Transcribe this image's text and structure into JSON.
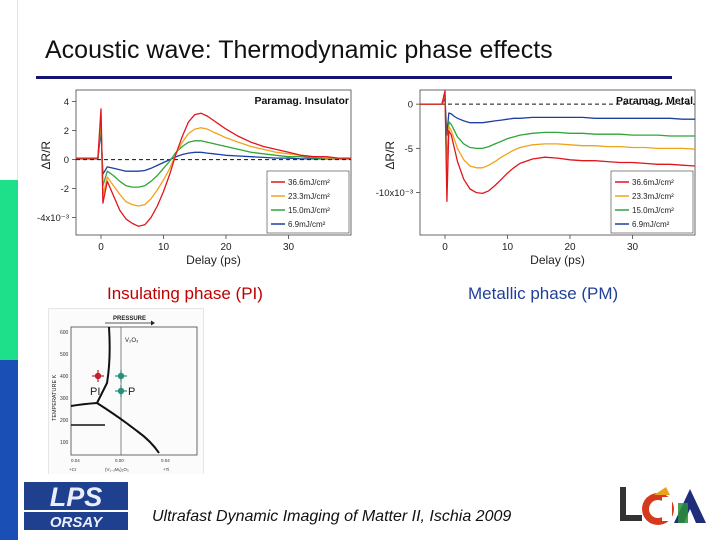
{
  "slide": {
    "title": "Acoustic wave: Thermodynamic phase effects",
    "footer": "Ultrafast Dynamic Imaging of Matter II, Ischia 2009",
    "left_label": "Insulating phase (PI)",
    "right_label": "Metallic phase (PM)",
    "logo_lps_top": "LPS",
    "logo_lps_bottom": "ORSAY",
    "colors": {
      "title_rule": "#141470",
      "bar_green": "#1fe08a",
      "bar_blue": "#1a4fb5"
    }
  },
  "chart_data": [
    {
      "type": "line",
      "title": "Paramag. Insulator",
      "xlabel": "Delay (ps)",
      "ylabel": "ΔR/R",
      "x_ticks": [
        "0",
        "10",
        "20",
        "30"
      ],
      "y_ticks": [
        "4",
        "2",
        "0",
        "-2",
        "-4x10⁻³"
      ],
      "xlim": [
        -4,
        40
      ],
      "ylim": [
        -5.2,
        4.8
      ],
      "scale_note": "",
      "legend_position": "bottom-right",
      "series": [
        {
          "name": "36.6mJ/cm²",
          "color": "#e0161e",
          "x": [
            -4,
            -0.5,
            0,
            0.3,
            1,
            2,
            3,
            4,
            5,
            6,
            7,
            8,
            9,
            10,
            11,
            12,
            13,
            14,
            15,
            16,
            17,
            18,
            19,
            20,
            22,
            24,
            26,
            28,
            30,
            32,
            34,
            36,
            38,
            40
          ],
          "y": [
            0.1,
            0.1,
            3.5,
            -3,
            -1.5,
            -2.5,
            -3.5,
            -4.1,
            -4.4,
            -4.6,
            -4.5,
            -4.0,
            -3.2,
            -2.2,
            -1.0,
            0.4,
            1.6,
            2.6,
            3.1,
            3.2,
            3.0,
            2.7,
            2.4,
            2.1,
            1.6,
            1.2,
            0.9,
            0.7,
            0.5,
            0.3,
            0.2,
            0.2,
            0.1,
            0.1
          ]
        },
        {
          "name": "23.3mJ/cm²",
          "color": "#f0a21a",
          "x": [
            -4,
            -0.5,
            0,
            0.3,
            1,
            2,
            3,
            4,
            5,
            6,
            7,
            8,
            9,
            10,
            11,
            12,
            13,
            14,
            15,
            16,
            17,
            18,
            19,
            20,
            22,
            24,
            26,
            28,
            30,
            32,
            34,
            36,
            38,
            40
          ],
          "y": [
            0.1,
            0.1,
            3.0,
            -2.5,
            -1.2,
            -1.8,
            -2.4,
            -2.9,
            -3.1,
            -3.2,
            -3.1,
            -2.7,
            -2.1,
            -1.4,
            -0.6,
            0.4,
            1.2,
            1.8,
            2.1,
            2.2,
            2.1,
            1.9,
            1.7,
            1.5,
            1.2,
            0.9,
            0.7,
            0.5,
            0.4,
            0.3,
            0.2,
            0.1,
            0.1,
            0.1
          ]
        },
        {
          "name": "15.0mJ/cm²",
          "color": "#2fa53a",
          "x": [
            -4,
            -0.5,
            0,
            0.3,
            1,
            2,
            3,
            4,
            5,
            6,
            7,
            8,
            9,
            10,
            11,
            12,
            13,
            14,
            15,
            16,
            17,
            18,
            19,
            20,
            22,
            24,
            26,
            28,
            30,
            32,
            34,
            36,
            38,
            40
          ],
          "y": [
            0.1,
            0.1,
            2.6,
            -1.8,
            -0.8,
            -1.1,
            -1.5,
            -1.8,
            -1.9,
            -1.9,
            -1.8,
            -1.5,
            -1.1,
            -0.6,
            -0.1,
            0.5,
            0.9,
            1.2,
            1.3,
            1.3,
            1.2,
            1.1,
            1.0,
            0.9,
            0.7,
            0.5,
            0.4,
            0.3,
            0.2,
            0.2,
            0.1,
            0.1,
            0.1,
            0.1
          ]
        },
        {
          "name": "6.9mJ/cm²",
          "color": "#1f3fa0",
          "x": [
            -4,
            -0.5,
            0,
            0.3,
            1,
            2,
            3,
            4,
            5,
            6,
            7,
            8,
            9,
            10,
            11,
            12,
            13,
            14,
            15,
            16,
            17,
            18,
            19,
            20,
            22,
            24,
            26,
            28,
            30,
            32,
            34,
            36,
            38,
            40
          ],
          "y": [
            0.05,
            0.05,
            2.0,
            -1.0,
            -0.5,
            -0.6,
            -0.7,
            -0.8,
            -0.8,
            -0.8,
            -0.75,
            -0.6,
            -0.4,
            -0.2,
            0.0,
            0.2,
            0.35,
            0.45,
            0.5,
            0.5,
            0.45,
            0.4,
            0.35,
            0.3,
            0.25,
            0.2,
            0.15,
            0.1,
            0.1,
            0.05,
            0.05,
            0.05,
            0.05,
            0.05
          ]
        }
      ]
    },
    {
      "type": "line",
      "title": "Paramag. Metal",
      "xlabel": "Delay (ps)",
      "ylabel": "ΔR/R",
      "x_ticks": [
        "0",
        "10",
        "20",
        "30"
      ],
      "y_ticks": [
        "0",
        "-5",
        "-10x10⁻³"
      ],
      "xlim": [
        -4,
        40
      ],
      "ylim": [
        -14.8,
        1.6
      ],
      "scale_note": "",
      "legend_position": "bottom-right",
      "series": [
        {
          "name": "36.6mJ/cm²",
          "color": "#e0161e",
          "x": [
            -4,
            -0.5,
            0,
            0.3,
            0.6,
            1,
            1.5,
            2,
            3,
            4,
            5,
            6,
            7,
            8,
            9,
            10,
            11,
            12,
            14,
            16,
            18,
            20,
            22,
            24,
            26,
            28,
            30,
            32,
            34,
            36,
            38,
            40
          ],
          "y": [
            0,
            0,
            1.5,
            -11,
            -3,
            -3.5,
            -5,
            -6.5,
            -8.5,
            -9.6,
            -10.0,
            -10.1,
            -9.8,
            -9.2,
            -8.5,
            -7.8,
            -7.2,
            -6.7,
            -6.2,
            -6.0,
            -6.1,
            -6.3,
            -6.4,
            -6.4,
            -6.5,
            -6.6,
            -6.6,
            -6.7,
            -6.8,
            -6.8,
            -6.9,
            -7.0
          ]
        },
        {
          "name": "23.3mJ/cm²",
          "color": "#f0a21a",
          "x": [
            -4,
            -0.5,
            0,
            0.3,
            0.6,
            1,
            1.5,
            2,
            3,
            4,
            5,
            6,
            7,
            8,
            9,
            10,
            11,
            12,
            14,
            16,
            18,
            20,
            22,
            24,
            26,
            28,
            30,
            32,
            34,
            36,
            38,
            40
          ],
          "y": [
            0,
            0,
            1.2,
            -9,
            -2.5,
            -3,
            -4,
            -5,
            -6.3,
            -7.0,
            -7.2,
            -7.2,
            -6.9,
            -6.5,
            -6.0,
            -5.6,
            -5.2,
            -4.9,
            -4.6,
            -4.5,
            -4.5,
            -4.6,
            -4.7,
            -4.7,
            -4.8,
            -4.8,
            -4.9,
            -4.9,
            -5.0,
            -5.0,
            -5.0,
            -5.1
          ]
        },
        {
          "name": "15.0mJ/cm²",
          "color": "#2fa53a",
          "x": [
            -4,
            -0.5,
            0,
            0.3,
            0.6,
            1,
            1.5,
            2,
            3,
            4,
            5,
            6,
            7,
            8,
            9,
            10,
            11,
            12,
            14,
            16,
            18,
            20,
            22,
            24,
            26,
            28,
            30,
            32,
            34,
            36,
            38,
            40
          ],
          "y": [
            0,
            0,
            1.0,
            -7,
            -2,
            -2.3,
            -3,
            -3.7,
            -4.5,
            -4.9,
            -5.0,
            -5.0,
            -4.8,
            -4.5,
            -4.2,
            -3.9,
            -3.7,
            -3.5,
            -3.3,
            -3.2,
            -3.2,
            -3.3,
            -3.3,
            -3.4,
            -3.4,
            -3.4,
            -3.5,
            -3.5,
            -3.5,
            -3.6,
            -3.6,
            -3.6
          ]
        },
        {
          "name": "6.9mJ/cm²",
          "color": "#1f3fa0",
          "x": [
            -4,
            -0.5,
            0,
            0.3,
            0.6,
            1,
            1.5,
            2,
            3,
            4,
            5,
            6,
            7,
            8,
            9,
            10,
            11,
            12,
            14,
            16,
            18,
            20,
            22,
            24,
            26,
            28,
            30,
            32,
            34,
            36,
            38,
            40
          ],
          "y": [
            0,
            0,
            0.6,
            -3.5,
            -1,
            -1.1,
            -1.4,
            -1.6,
            -1.9,
            -2.1,
            -2.1,
            -2.1,
            -2.0,
            -1.9,
            -1.8,
            -1.7,
            -1.6,
            -1.6,
            -1.5,
            -1.5,
            -1.5,
            -1.5,
            -1.5,
            -1.6,
            -1.6,
            -1.6,
            -1.6,
            -1.6,
            -1.6,
            -1.6,
            -1.7,
            -1.7
          ]
        }
      ]
    }
  ],
  "phase_diagram": {
    "header": "PRESSURE",
    "ylabel": "TEMPERATURE K",
    "compound": "V₂O₃",
    "y_ticks": [
      "600",
      "500",
      "400",
      "300",
      "200",
      "100"
    ],
    "x_ticks": [
      "0.04",
      "0.00",
      "0.04"
    ],
    "x_labels": [
      "+Cr",
      "(V₁₋ₓMₓ)₂O₃",
      "+Ti"
    ],
    "marker_left": "PI",
    "marker_right": "P",
    "marker_color": "#c0202a",
    "marker_color_right": "#2a8f7a"
  }
}
